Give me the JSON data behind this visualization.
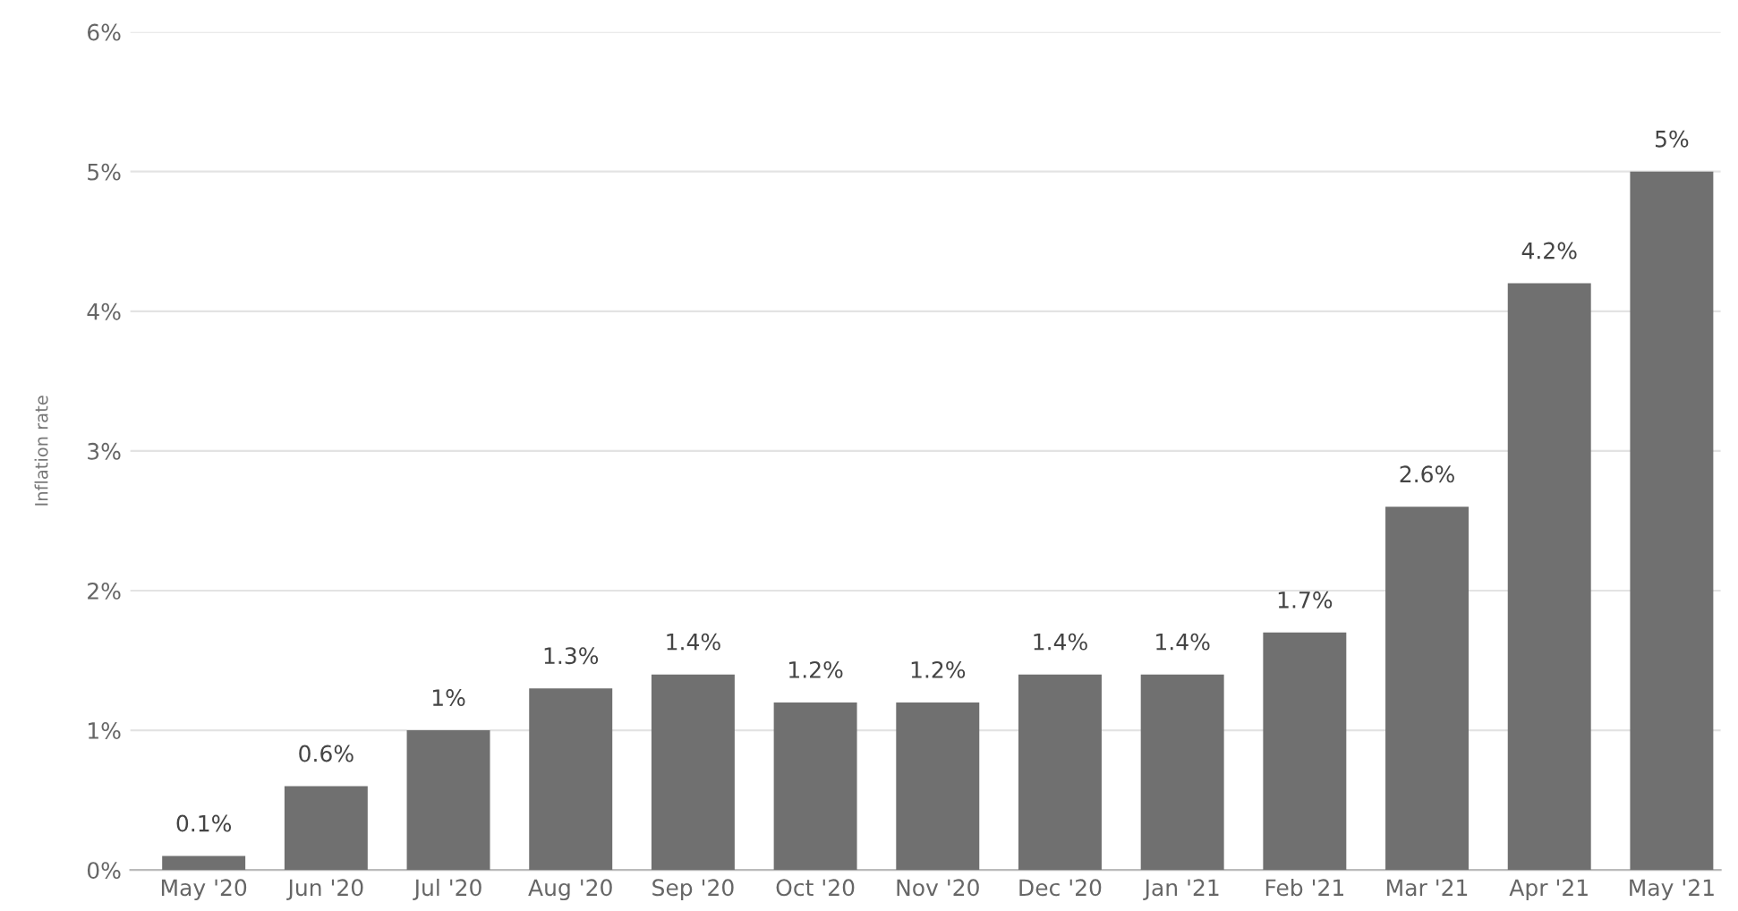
{
  "chart_data": {
    "type": "bar",
    "ylabel": "Inflation rate",
    "categories": [
      "May '20",
      "Jun '20",
      "Jul '20",
      "Aug '20",
      "Sep '20",
      "Oct '20",
      "Nov '20",
      "Dec '20",
      "Jan '21",
      "Feb '21",
      "Mar '21",
      "Apr '21",
      "May '21"
    ],
    "values": [
      0.1,
      0.6,
      1,
      1.3,
      1.4,
      1.2,
      1.2,
      1.4,
      1.4,
      1.7,
      2.6,
      4.2,
      5
    ],
    "value_labels": [
      "0.1%",
      "0.6%",
      "1%",
      "1.3%",
      "1.4%",
      "1.2%",
      "1.2%",
      "1.4%",
      "1.4%",
      "1.7%",
      "2.6%",
      "4.2%",
      "5%"
    ],
    "color": "#707070",
    "ylim": [
      0,
      6
    ],
    "yticks": [
      {
        "value": 0,
        "label": "0%"
      },
      {
        "value": 1,
        "label": "1%"
      },
      {
        "value": 2,
        "label": "2%"
      },
      {
        "value": 3,
        "label": "3%"
      },
      {
        "value": 4,
        "label": "4%"
      },
      {
        "value": 5,
        "label": "5%"
      },
      {
        "value": 6,
        "label": "6%"
      }
    ],
    "grid": "y",
    "legend": false
  }
}
